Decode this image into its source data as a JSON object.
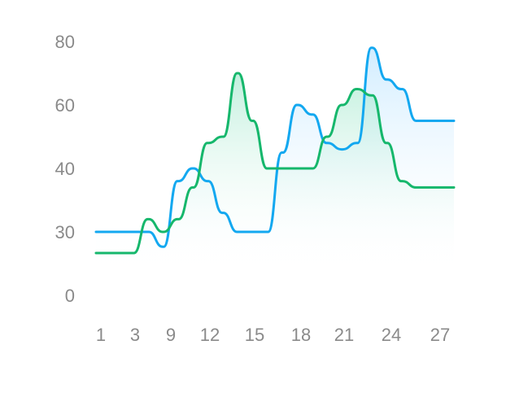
{
  "chart_data": {
    "type": "area",
    "title": "",
    "xlabel": "",
    "ylabel": "",
    "x_ticks": [
      "1",
      "3",
      "9",
      "12",
      "15",
      "18",
      "21",
      "24",
      "27"
    ],
    "y_ticks": [
      "0",
      "30",
      "40",
      "60",
      "80"
    ],
    "grid": false,
    "legend": "none",
    "series": [
      {
        "color": "#13a8f0",
        "fill_top": "#b8e3ff",
        "fill_bottom": "#ffffff",
        "values": [
          30,
          30,
          30,
          30,
          23,
          38,
          40,
          38,
          33,
          30,
          30,
          30,
          45,
          60,
          57,
          48,
          46,
          48,
          78,
          68,
          65,
          55,
          55,
          55
        ]
      },
      {
        "color": "#16b76c",
        "fill_top": "#8fe3c2",
        "fill_bottom": "#ffffff",
        "values": [
          20,
          20,
          20,
          32,
          30,
          32,
          37,
          48,
          50,
          70,
          55,
          40,
          40,
          40,
          40,
          50,
          60,
          65,
          63,
          48,
          38,
          37,
          37,
          37
        ]
      }
    ]
  }
}
